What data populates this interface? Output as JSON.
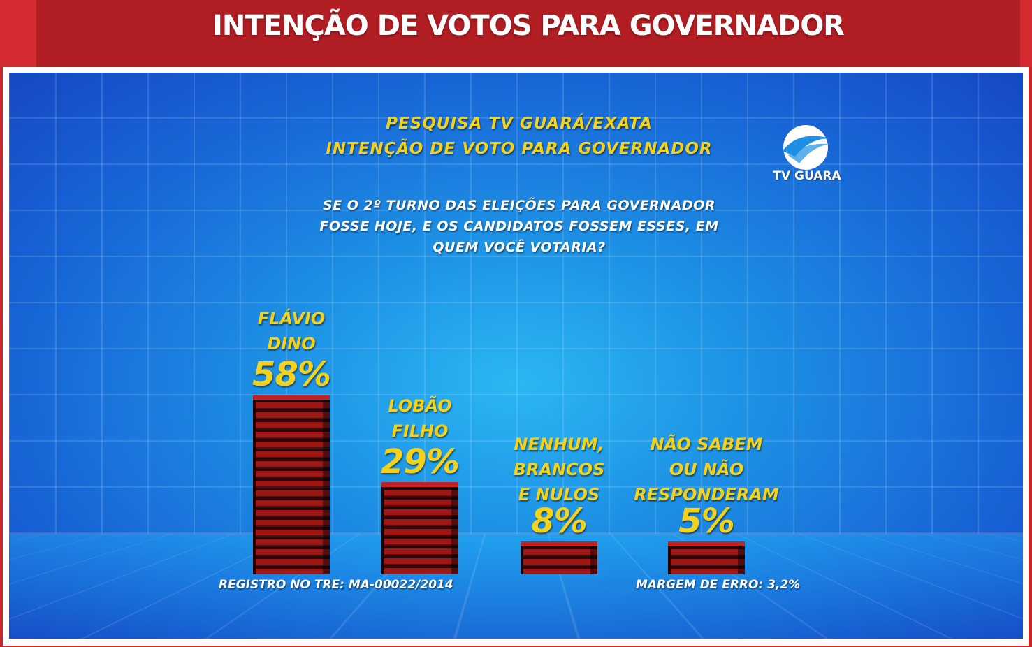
{
  "header": {
    "title": "INTENÇÃO DE VOTOS PARA GOVERNADOR"
  },
  "subtitle_line1": "PESQUISA TV GUARÁ/EXATA",
  "subtitle_line2": "INTENÇÃO DE VOTO PARA GOVERNADOR",
  "question": "SE O 2º TURNO DAS ELEIÇÕES PARA GOVERNADOR FOSSE HOJE, E OS CANDIDATOS FOSSEM ESSES, EM QUEM VOCÊ VOTARIA?",
  "logo_text": "TV GUARA",
  "footer": {
    "registro": "REGISTRO NO TRE: MA-00022/2014",
    "margem": "MARGEM DE ERRO: 3,2%"
  },
  "colors": {
    "accent_yellow": "#f2d21c",
    "bar_red": "#9e1717",
    "header_red": "#b11e24",
    "panel_blue": "#1d8fe4"
  },
  "chart_data": {
    "type": "bar",
    "categories": [
      "FLÁVIO DINO",
      "LOBÃO FILHO",
      "NENHUM, BRANCOS E NULOS",
      "NÃO SABEM OU NÃO RESPONDERAM"
    ],
    "label_lines": [
      [
        "FLÁVIO",
        "DINO"
      ],
      [
        "LOBÃO",
        "FILHO"
      ],
      [
        "NENHUM,",
        "BRANCOS",
        "E NULOS"
      ],
      [
        "NÃO SABEM",
        "OU NÃO",
        "RESPONDERAM"
      ]
    ],
    "values": [
      58,
      29,
      8,
      5
    ],
    "value_labels": [
      "58%",
      "29%",
      "8%",
      "5%"
    ],
    "title": "PESQUISA TV GUARÁ/EXATA",
    "xlabel": "",
    "ylabel": "",
    "ylim": [
      0,
      58
    ],
    "grid": false
  }
}
